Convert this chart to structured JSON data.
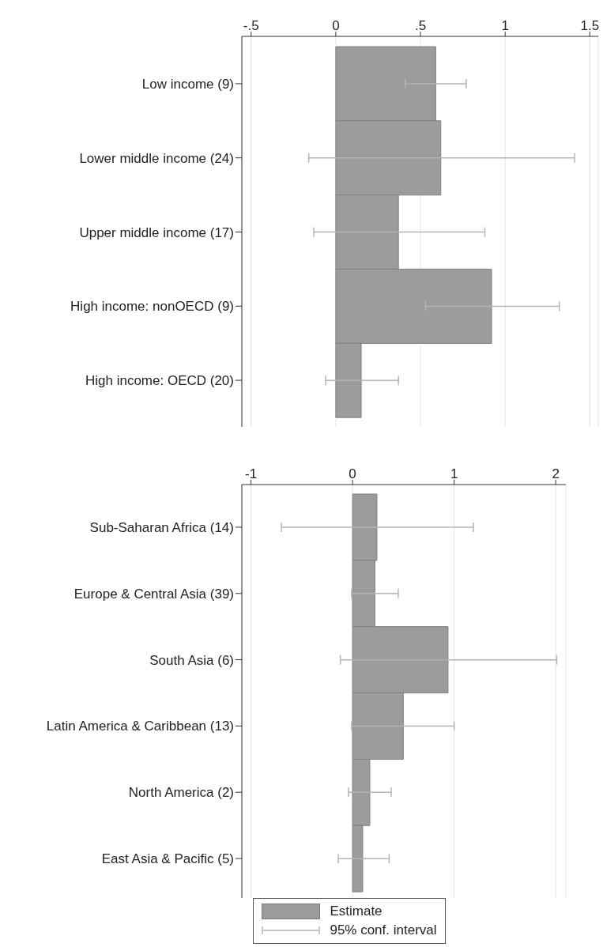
{
  "chart_data": [
    {
      "type": "bar",
      "orientation": "horizontal",
      "categories": [
        "Low income (9)",
        "Lower middle income (24)",
        "Upper middle income (17)",
        "High income: nonOECD (9)",
        "High income: OECD (20)"
      ],
      "series": [
        {
          "color": "#9c9c9c",
          "values": [
            0.59,
            0.62,
            0.37,
            0.92,
            0.15
          ],
          "errors": [
            [
              0.41,
              0.77
            ],
            [
              -0.16,
              1.41
            ],
            [
              -0.13,
              0.88
            ],
            [
              0.53,
              1.32
            ],
            [
              -0.06,
              0.37
            ]
          ]
        }
      ],
      "xlim": [
        -0.555,
        1.55
      ],
      "xticks": [
        {
          "value": -0.5,
          "label": "-.5"
        },
        0,
        {
          "value": 0.5,
          "label": ".5"
        },
        1,
        1.5
      ],
      "grid": "x",
      "legend": false
    },
    {
      "type": "bar",
      "orientation": "horizontal",
      "categories": [
        "Sub-Saharan Africa (14)",
        "Europe & Central Asia (39)",
        "South Asia (6)",
        "Latin America & Caribbean (13)",
        "North America (2)",
        "East Asia & Pacific (5)"
      ],
      "series": [
        {
          "name": "Estimate",
          "color": "#9c9c9c",
          "values": [
            0.24,
            0.22,
            0.94,
            0.5,
            0.17,
            0.1
          ],
          "errors": [
            [
              -0.7,
              1.19
            ],
            [
              -0.01,
              0.45
            ],
            [
              -0.12,
              2.01
            ],
            [
              -0.01,
              1.0
            ],
            [
              -0.04,
              0.38
            ],
            [
              -0.14,
              0.36
            ]
          ]
        }
      ],
      "xlim": [
        -1.09,
        2.1
      ],
      "xticks": [
        -1,
        0,
        1,
        2
      ],
      "grid": "x",
      "legend": "bottom",
      "annotations": [
        "95% conf. interval"
      ]
    }
  ]
}
